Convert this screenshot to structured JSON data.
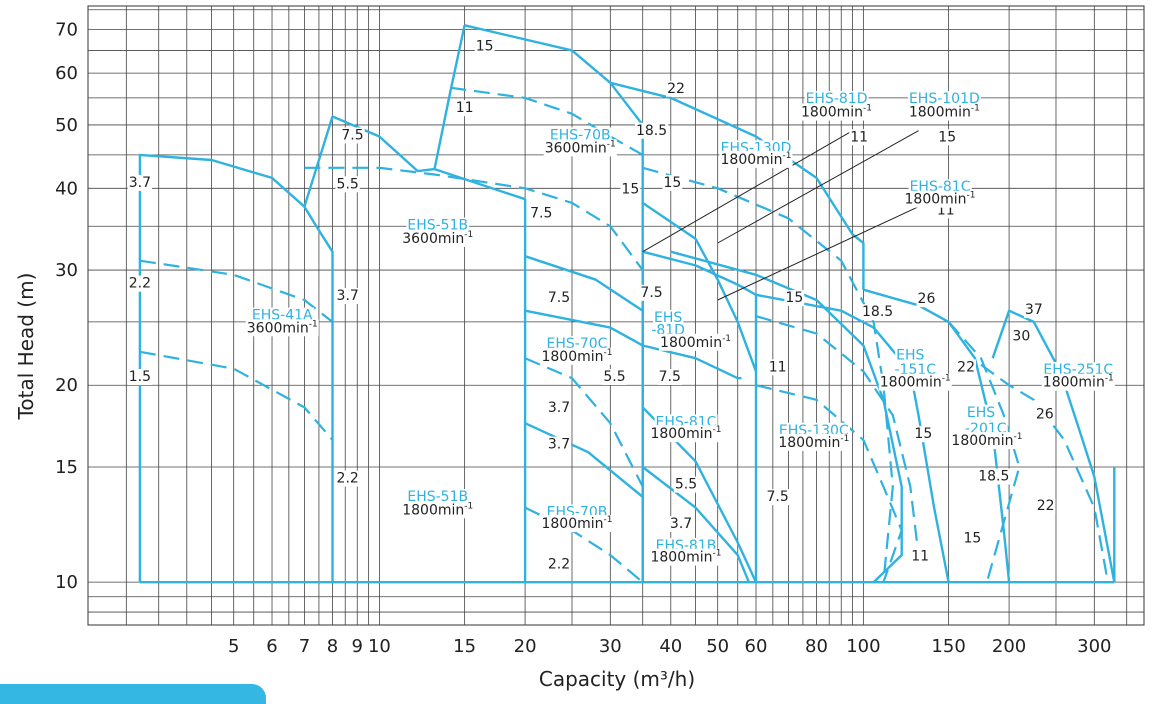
{
  "chart_data": {
    "type": "line",
    "xlabel": "Capacity (m³/h)",
    "ylabel": "Total Head (m)",
    "xscale": "log",
    "yscale": "log",
    "xlim": [
      2.5,
      380
    ],
    "ylim": [
      8.6,
      76
    ],
    "x_ticks": [
      "5",
      "6",
      "7",
      "8",
      "9",
      "10",
      "15",
      "20",
      "30",
      "40",
      "50",
      "60",
      "80",
      "100",
      "150",
      "200",
      "300"
    ],
    "y_ticks": [
      "10",
      "15",
      "20",
      "30",
      "40",
      "50",
      "60",
      "70"
    ],
    "line_color": "#2fb2e0",
    "grid": "on",
    "models": [
      {
        "name": "EHS-41A",
        "speed": "3600min-1",
        "motors": [
          "3.7",
          "2.2",
          "1.5"
        ]
      },
      {
        "name": "EHS-51B",
        "speed": "3600min-1",
        "motors": [
          "7.5",
          "5.5",
          "3.7"
        ]
      },
      {
        "name": "EHS-51B",
        "speed": "1800min-1",
        "motors": [
          "2.2"
        ]
      },
      {
        "name": "EHS-70B",
        "speed": "3600min-1",
        "motors": [
          "15",
          "11",
          "7.5"
        ]
      },
      {
        "name": "EHS-70C",
        "speed": "1800min-1",
        "motors": [
          "7.5",
          "5.5",
          "3.7"
        ]
      },
      {
        "name": "EHS-70B",
        "speed": "1800min-1",
        "motors": [
          "3.7",
          "2.2"
        ]
      },
      {
        "name": "EHS-81D",
        "speed": "1800min-1",
        "motors": [
          "22",
          "18.5",
          "15"
        ]
      },
      {
        "name": "EHS-81D",
        "speed": "1800min-1",
        "motors": [
          "7.5"
        ]
      },
      {
        "name": "EHS-81C",
        "speed": "1800min-1",
        "motors": [
          "7.5",
          "5.5"
        ]
      },
      {
        "name": "EHS-81B",
        "speed": "1800min-1",
        "motors": [
          "3.7"
        ]
      },
      {
        "name": "EHS-101D",
        "speed": "1800min-1",
        "motors": [
          "11",
          "15"
        ]
      },
      {
        "name": "EHS-130D",
        "speed": "1800min-1",
        "motors": [
          "15"
        ]
      },
      {
        "name": "EHS-81C",
        "speed": "1800min-1",
        "motors": [
          "11"
        ]
      },
      {
        "name": "EHS-130C",
        "speed": "1800min-1",
        "motors": [
          "15",
          "11",
          "7.5"
        ]
      },
      {
        "name": "EHS-151C",
        "speed": "1800min-1",
        "motors": [
          "18.5",
          "15",
          "11"
        ]
      },
      {
        "name": "EHS-201C",
        "speed": "1800min-1",
        "motors": [
          "26",
          "22",
          "18.5",
          "15"
        ]
      },
      {
        "name": "EHS-251C",
        "speed": "1800min-1",
        "motors": [
          "37",
          "30",
          "26",
          "22"
        ]
      }
    ],
    "model_labels": [
      {
        "text": "EHS-41A",
        "x": 6.3,
        "y": 25.2
      },
      {
        "text": "EHS-51B",
        "x": 13.2,
        "y": 34.6
      },
      {
        "text": "EHS-51B",
        "x": 13.2,
        "y": 13.3
      },
      {
        "text": "EHS-70B",
        "x": 26,
        "y": 47.5
      },
      {
        "text": "EHS-70C",
        "x": 25.6,
        "y": 22.8
      },
      {
        "text": "EHS-70B",
        "x": 25.6,
        "y": 12.6
      },
      {
        "text": "EHS",
        "x": 39.5,
        "y": 25.0
      },
      {
        "text": "-81D",
        "x": 39.5,
        "y": 23.9
      },
      {
        "text": "EHS-81C",
        "x": 43,
        "y": 17.3
      },
      {
        "text": "EHS-81B",
        "x": 43,
        "y": 11.2
      },
      {
        "text": "EHS-81D",
        "x": 88,
        "y": 54
      },
      {
        "text": "EHS-101D",
        "x": 147,
        "y": 54
      },
      {
        "text": "EHS-130D",
        "x": 60,
        "y": 45.4
      },
      {
        "text": "EHS-81C",
        "x": 144,
        "y": 39.6
      },
      {
        "text": "EHS-130C",
        "x": 79,
        "y": 16.8
      },
      {
        "text": "EHS",
        "x": 125,
        "y": 21.9
      },
      {
        "text": "-151C",
        "x": 128,
        "y": 20.8
      },
      {
        "text": "EHS",
        "x": 175,
        "y": 17.9
      },
      {
        "text": "-201C",
        "x": 179,
        "y": 16.9
      },
      {
        "text": "EHS-251C",
        "x": 278,
        "y": 20.8
      }
    ],
    "speed_labels": [
      {
        "text": "3600min",
        "x": 6.3,
        "y": 24.1
      },
      {
        "text": "3600min",
        "x": 13.2,
        "y": 33.0
      },
      {
        "text": "1800min",
        "x": 13.2,
        "y": 12.7
      },
      {
        "text": "3600min",
        "x": 26,
        "y": 45.4
      },
      {
        "text": "1800min",
        "x": 25.6,
        "y": 21.8
      },
      {
        "text": "1800min",
        "x": 25.6,
        "y": 12.1
      },
      {
        "text": "1800min",
        "x": 45,
        "y": 22.9
      },
      {
        "text": "1800min",
        "x": 43,
        "y": 16.6
      },
      {
        "text": "1800min",
        "x": 43,
        "y": 10.75
      },
      {
        "text": "1800min",
        "x": 88,
        "y": 51.5
      },
      {
        "text": "1800min",
        "x": 147,
        "y": 51.5
      },
      {
        "text": "1800min",
        "x": 60,
        "y": 43.6
      },
      {
        "text": "1800min",
        "x": 144,
        "y": 37.9
      },
      {
        "text": "1800min",
        "x": 79,
        "y": 16.1
      },
      {
        "text": "1800min",
        "x": 128,
        "y": 19.9
      },
      {
        "text": "1800min",
        "x": 180,
        "y": 16.2
      },
      {
        "text": "1800min",
        "x": 278,
        "y": 19.9
      }
    ],
    "speed_superscript": "-1",
    "power_labels": [
      {
        "text": "3.7",
        "x": 3.2,
        "y": 40.2
      },
      {
        "text": "2.2",
        "x": 3.2,
        "y": 28.2
      },
      {
        "text": "1.5",
        "x": 3.2,
        "y": 20.3
      },
      {
        "text": "7.5",
        "x": 8.8,
        "y": 47.5
      },
      {
        "text": "5.5",
        "x": 8.6,
        "y": 40.0
      },
      {
        "text": "3.7",
        "x": 8.6,
        "y": 27.0
      },
      {
        "text": "2.2",
        "x": 8.6,
        "y": 14.2
      },
      {
        "text": "15",
        "x": 16.5,
        "y": 65.0
      },
      {
        "text": "11",
        "x": 15.0,
        "y": 52.3
      },
      {
        "text": "15",
        "x": 33,
        "y": 39.3
      },
      {
        "text": "7.5",
        "x": 21.6,
        "y": 36.1
      },
      {
        "text": "7.5",
        "x": 23.5,
        "y": 26.8
      },
      {
        "text": "5.5",
        "x": 30.6,
        "y": 20.3
      },
      {
        "text": "3.7",
        "x": 23.5,
        "y": 18.2
      },
      {
        "text": "3.7",
        "x": 23.5,
        "y": 16.0
      },
      {
        "text": "2.2",
        "x": 23.5,
        "y": 10.5
      },
      {
        "text": "22",
        "x": 41,
        "y": 56.0
      },
      {
        "text": "18.5",
        "x": 36.5,
        "y": 48.3
      },
      {
        "text": "15",
        "x": 40.3,
        "y": 40.2
      },
      {
        "text": "7.5",
        "x": 36.5,
        "y": 27.3
      },
      {
        "text": "7.5",
        "x": 39.8,
        "y": 20.3
      },
      {
        "text": "5.5",
        "x": 43,
        "y": 13.9
      },
      {
        "text": "3.7",
        "x": 42,
        "y": 12.1
      },
      {
        "text": "11",
        "x": 98,
        "y": 47.2
      },
      {
        "text": "15",
        "x": 149,
        "y": 47.2
      },
      {
        "text": "11",
        "x": 148,
        "y": 36.5
      },
      {
        "text": "15",
        "x": 72,
        "y": 26.8
      },
      {
        "text": "11",
        "x": 66.5,
        "y": 21.0
      },
      {
        "text": "7.5",
        "x": 66.5,
        "y": 13.3
      },
      {
        "text": "18.5",
        "x": 107,
        "y": 25.5
      },
      {
        "text": "26",
        "x": 135,
        "y": 26.7
      },
      {
        "text": "22",
        "x": 163,
        "y": 21.0
      },
      {
        "text": "15",
        "x": 133,
        "y": 16.6
      },
      {
        "text": "11",
        "x": 131,
        "y": 10.8
      },
      {
        "text": "18.5",
        "x": 186,
        "y": 14.3
      },
      {
        "text": "15",
        "x": 168,
        "y": 11.5
      },
      {
        "text": "37",
        "x": 225,
        "y": 25.7
      },
      {
        "text": "30",
        "x": 212,
        "y": 23.4
      },
      {
        "text": "26",
        "x": 237,
        "y": 17.8
      },
      {
        "text": "22",
        "x": 238,
        "y": 12.9
      }
    ],
    "outline_paths": [
      [
        [
          3.2,
          10
        ],
        [
          3.2,
          45
        ],
        [
          4.5,
          44.2
        ],
        [
          6,
          41.5
        ],
        [
          7,
          37.5
        ],
        [
          7.5,
          34.5
        ],
        [
          8,
          32
        ],
        [
          8,
          10
        ]
      ],
      [
        [
          7,
          37.5
        ],
        [
          8,
          51.5
        ],
        [
          10,
          48
        ],
        [
          12,
          42.5
        ],
        [
          13,
          42.8
        ],
        [
          14,
          56
        ],
        [
          15,
          71
        ]
      ],
      [
        [
          13,
          42.8
        ],
        [
          20,
          38.5
        ],
        [
          20,
          10
        ]
      ],
      [
        [
          15,
          71
        ],
        [
          25,
          65
        ],
        [
          30,
          58
        ],
        [
          35,
          50
        ],
        [
          35,
          10
        ]
      ],
      [
        [
          30,
          58
        ],
        [
          40,
          55
        ],
        [
          60,
          48
        ],
        [
          80,
          41.5
        ],
        [
          95,
          34
        ],
        [
          100,
          33
        ],
        [
          100,
          28
        ]
      ],
      [
        [
          35,
          10
        ],
        [
          35,
          32
        ],
        [
          45,
          30.5
        ],
        [
          55,
          28.5
        ],
        [
          60,
          27.5
        ],
        [
          60,
          10
        ]
      ],
      [
        [
          20,
          31.5
        ],
        [
          28,
          29
        ],
        [
          35,
          26
        ]
      ],
      [
        [
          20,
          26
        ],
        [
          30,
          24.5
        ],
        [
          35,
          23
        ]
      ],
      [
        [
          20,
          17.5
        ],
        [
          27,
          15.8
        ],
        [
          35,
          13.5
        ],
        [
          35,
          10
        ]
      ],
      [
        [
          35,
          23
        ],
        [
          45,
          22
        ],
        [
          55,
          20.5
        ],
        [
          56,
          20.5
        ]
      ],
      [
        [
          35,
          38
        ],
        [
          45,
          33.5
        ],
        [
          50,
          29
        ],
        [
          55,
          25
        ],
        [
          60,
          21
        ]
      ],
      [
        [
          35,
          18.5
        ],
        [
          45,
          15.3
        ],
        [
          55,
          11.5
        ],
        [
          60,
          10
        ]
      ],
      [
        [
          35,
          15
        ],
        [
          45,
          13
        ],
        [
          55,
          11
        ],
        [
          58,
          10
        ]
      ],
      [
        [
          60,
          27.5
        ],
        [
          90,
          26
        ],
        [
          105,
          24.5
        ],
        [
          125,
          21
        ],
        [
          130,
          18
        ],
        [
          140,
          13
        ],
        [
          150,
          10
        ]
      ],
      [
        [
          100,
          28
        ],
        [
          130,
          26.5
        ],
        [
          150,
          25
        ],
        [
          170,
          22
        ],
        [
          185,
          17
        ],
        [
          195,
          12
        ],
        [
          200,
          10
        ]
      ],
      [
        [
          40,
          32
        ],
        [
          60,
          29.5
        ],
        [
          80,
          27
        ],
        [
          100,
          23
        ],
        [
          110,
          19
        ],
        [
          120,
          14
        ],
        [
          120,
          11
        ],
        [
          105,
          10
        ]
      ],
      [
        [
          185,
          22
        ],
        [
          200,
          26
        ],
        [
          225,
          25
        ],
        [
          255,
          21
        ],
        [
          280,
          17
        ],
        [
          300,
          14.5
        ],
        [
          330,
          10
        ]
      ],
      [
        [
          330,
          15
        ],
        [
          330,
          10
        ]
      ],
      [
        [
          3.2,
          10
        ],
        [
          330,
          10
        ]
      ]
    ],
    "dashed_paths": [
      [
        [
          3.2,
          31
        ],
        [
          5,
          29.5
        ],
        [
          7,
          27
        ],
        [
          8,
          25
        ]
      ],
      [
        [
          3.2,
          22.5
        ],
        [
          5,
          21.2
        ],
        [
          7,
          18.5
        ],
        [
          8,
          16.5
        ]
      ],
      [
        [
          7,
          43
        ],
        [
          10,
          43
        ],
        [
          13,
          42
        ],
        [
          20,
          40
        ],
        [
          25,
          38
        ],
        [
          30,
          35
        ],
        [
          35,
          30
        ]
      ],
      [
        [
          14,
          57
        ],
        [
          20,
          55
        ],
        [
          25,
          52
        ],
        [
          30,
          48
        ],
        [
          35,
          45
        ]
      ],
      [
        [
          20,
          22
        ],
        [
          25,
          20.5
        ],
        [
          30,
          17.5
        ],
        [
          35,
          14
        ]
      ],
      [
        [
          20,
          13
        ],
        [
          25,
          12
        ],
        [
          30,
          11
        ],
        [
          35,
          10
        ]
      ],
      [
        [
          35,
          43
        ],
        [
          50,
          40
        ],
        [
          70,
          36
        ],
        [
          90,
          31
        ],
        [
          105,
          25
        ],
        [
          110,
          20
        ],
        [
          115,
          14
        ],
        [
          110,
          10
        ]
      ],
      [
        [
          60,
          20
        ],
        [
          80,
          19
        ],
        [
          100,
          16.5
        ],
        [
          110,
          14
        ],
        [
          120,
          12
        ],
        [
          110,
          10
        ]
      ],
      [
        [
          60,
          25.5
        ],
        [
          80,
          24
        ],
        [
          100,
          21
        ],
        [
          115,
          18
        ],
        [
          125,
          14
        ],
        [
          130,
          11
        ]
      ],
      [
        [
          150,
          25
        ],
        [
          175,
          22
        ],
        [
          195,
          18
        ],
        [
          210,
          15
        ],
        [
          180,
          10
        ]
      ],
      [
        [
          175,
          21.5
        ],
        [
          200,
          20
        ],
        [
          225,
          19
        ],
        [
          260,
          16.5
        ],
        [
          300,
          13
        ],
        [
          320,
          10
        ]
      ]
    ],
    "leader_lines": [
      [
        [
          35,
          32
        ],
        [
          95,
          49
        ]
      ],
      [
        [
          50,
          33
        ],
        [
          130,
          49
        ]
      ],
      [
        [
          50,
          27
        ],
        [
          130,
          37.5
        ]
      ]
    ]
  }
}
